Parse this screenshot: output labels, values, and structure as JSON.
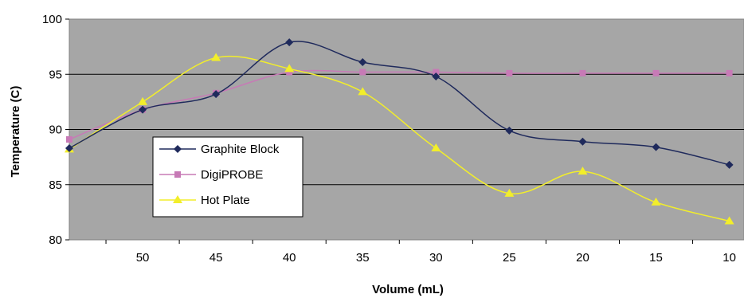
{
  "chart_data": {
    "type": "line",
    "title": "",
    "xlabel": "Volume (mL)",
    "ylabel": "Temperature (C)",
    "x_reversed": true,
    "xlim": [
      55,
      9
    ],
    "ylim": [
      80,
      100
    ],
    "x_ticks": [
      50,
      45,
      40,
      35,
      30,
      25,
      20,
      15,
      10
    ],
    "y_ticks": [
      80,
      85,
      90,
      95,
      100
    ],
    "grid": "horizontal",
    "legend_position": "left-inside",
    "plot_background": "#a6a6a6",
    "series": [
      {
        "name": "Graphite Block",
        "color": "#1f2a5c",
        "marker": "diamond",
        "x": [
          55,
          50,
          45,
          40,
          35,
          30,
          25,
          20,
          15,
          10
        ],
        "y": [
          88.3,
          91.8,
          93.2,
          97.9,
          96.1,
          94.8,
          89.9,
          88.9,
          88.4,
          86.8
        ]
      },
      {
        "name": "DigiPROBE",
        "color": "#c77ab6",
        "marker": "square",
        "x": [
          55,
          50,
          45,
          40,
          35,
          30,
          25,
          20,
          15,
          10
        ],
        "y": [
          89.1,
          91.8,
          93.3,
          95.2,
          95.2,
          95.2,
          95.1,
          95.1,
          95.1,
          95.1
        ]
      },
      {
        "name": "Hot Plate",
        "color": "#f2ee2a",
        "marker": "triangle",
        "x": [
          55,
          50,
          45,
          40,
          35,
          30,
          25,
          20,
          15,
          10
        ],
        "y": [
          88.2,
          92.5,
          96.5,
          95.5,
          93.4,
          88.3,
          84.2,
          86.2,
          83.4,
          81.7
        ]
      }
    ]
  }
}
